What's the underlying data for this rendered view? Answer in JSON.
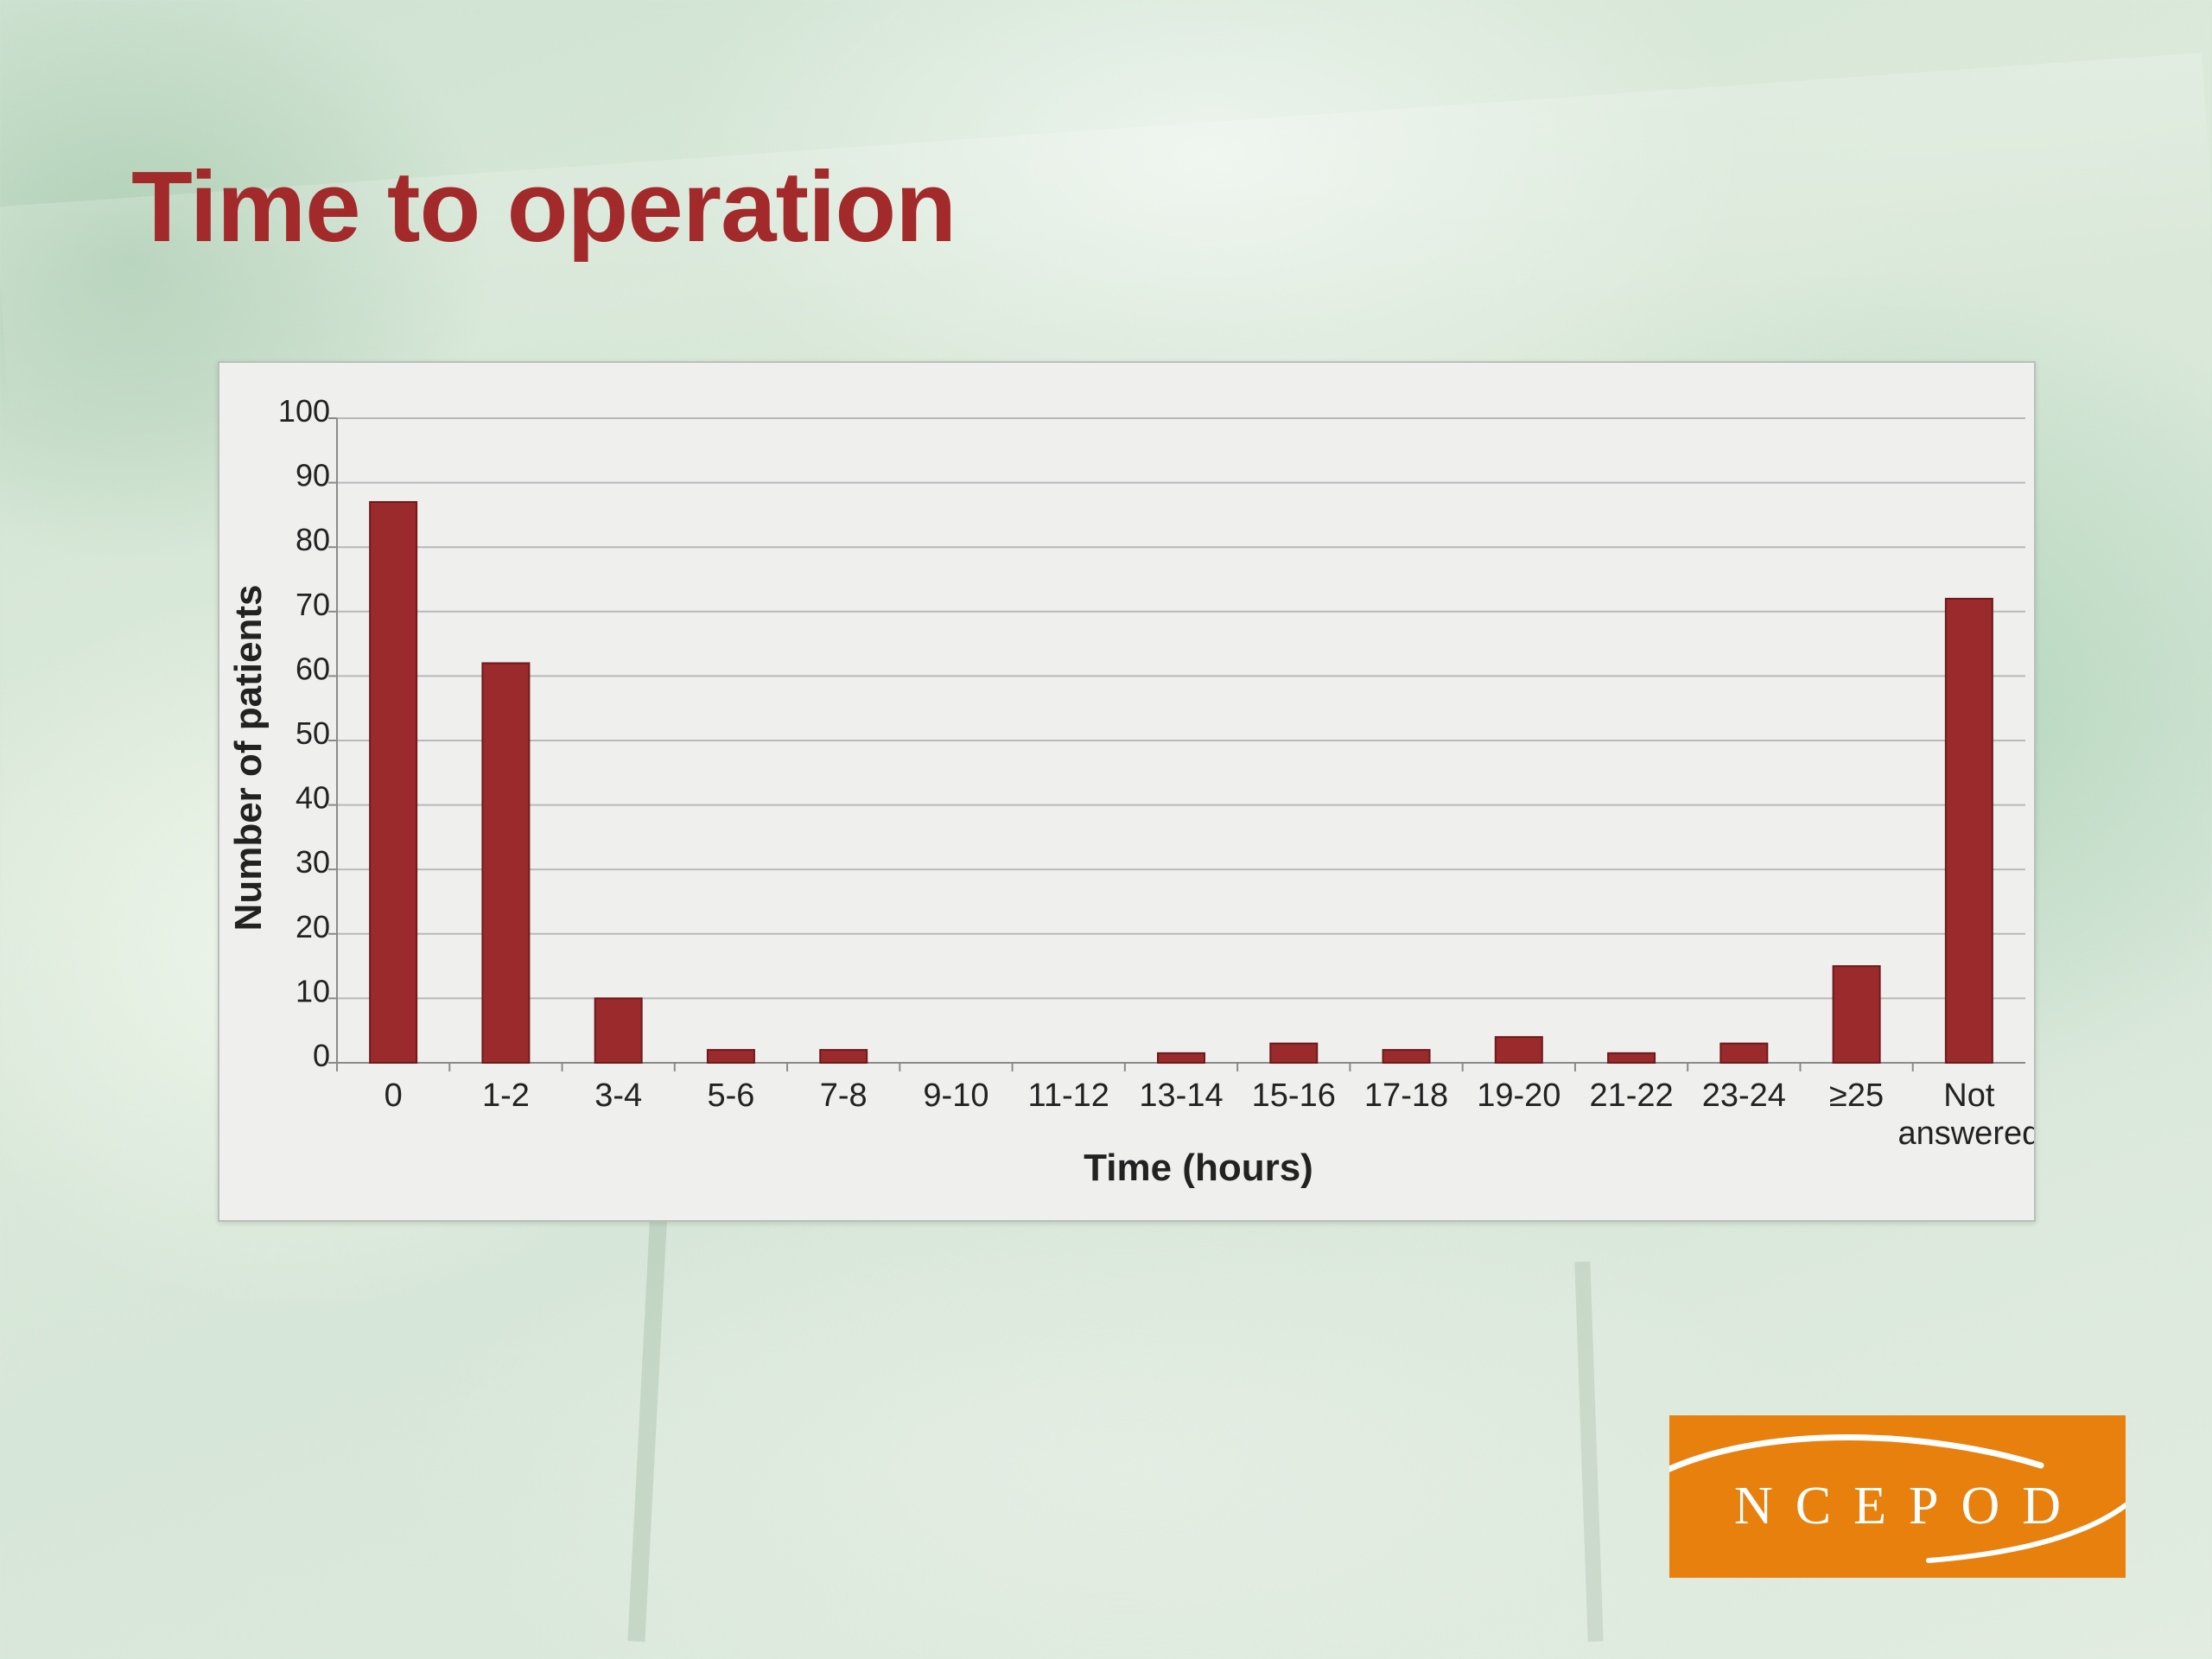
{
  "slide": {
    "title": "Time to operation"
  },
  "logo": {
    "text": "NCEPOD"
  },
  "colors": {
    "title": "#a32a2a",
    "bar": "#9b2a2c",
    "logo_background": "#e8800e"
  },
  "chart_data": {
    "type": "bar",
    "categories": [
      "0",
      "1-2",
      "3-4",
      "5-6",
      "7-8",
      "9-10",
      "11-12",
      "13-14",
      "15-16",
      "17-18",
      "19-20",
      "21-22",
      "23-24",
      "≥25",
      "Not\nanswered"
    ],
    "values": [
      87,
      62,
      10,
      2,
      2,
      0,
      0,
      1.5,
      3,
      2,
      4,
      1.5,
      3,
      15,
      72
    ],
    "xlabel": "Time (hours)",
    "ylabel": "Number of patients",
    "ylim": [
      0,
      100
    ],
    "yticks": [
      0,
      10,
      20,
      30,
      40,
      50,
      60,
      70,
      80,
      90,
      100
    ],
    "grid": true,
    "legend": "none"
  }
}
